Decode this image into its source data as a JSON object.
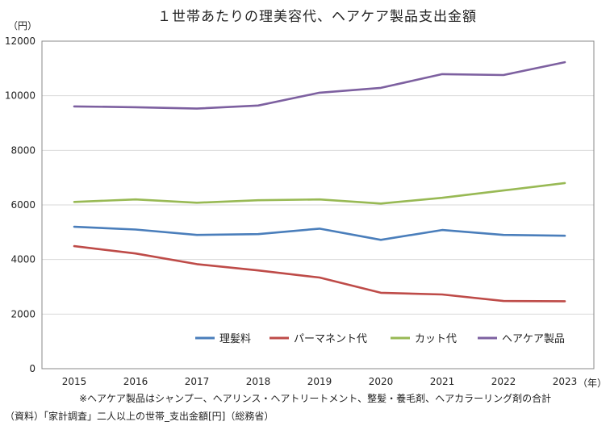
{
  "chart_data": {
    "type": "line",
    "title": "１世帯あたりの理美容代、ヘアケア製品支出金額",
    "ylabel_unit": "（円）",
    "xlabel_unit": "（年）",
    "x": [
      "2015",
      "2016",
      "2017",
      "2018",
      "2019",
      "2020",
      "2021",
      "2022",
      "2023"
    ],
    "ylim": [
      0,
      12000
    ],
    "yticks": [
      0,
      2000,
      4000,
      6000,
      8000,
      10000,
      12000
    ],
    "grid": true,
    "legend_position": "bottom-inside",
    "series": [
      {
        "name": "理髪料",
        "color": "#4a7ebb",
        "values": [
          5200,
          5100,
          4900,
          4930,
          5130,
          4720,
          5080,
          4900,
          4870
        ]
      },
      {
        "name": "パーマネント代",
        "color": "#be4b48",
        "values": [
          4490,
          4220,
          3830,
          3600,
          3340,
          2780,
          2720,
          2480,
          2470
        ]
      },
      {
        "name": "カット代",
        "color": "#98b954",
        "values": [
          6110,
          6200,
          6080,
          6170,
          6200,
          6050,
          6260,
          6530,
          6800
        ]
      },
      {
        "name": "ヘアケア製品",
        "color": "#7d60a0",
        "values": [
          9610,
          9580,
          9530,
          9640,
          10110,
          10290,
          10790,
          10760,
          11230
        ]
      }
    ]
  },
  "notes": {
    "footnote": "※ヘアケア製品はシャンプー、ヘアリンス・ヘアトリートメント、整髪・養毛剤、ヘアカラーリング剤の合計",
    "source": "（資料）「家計調査」二人以上の世帯_支出金額[円]（総務省）"
  }
}
